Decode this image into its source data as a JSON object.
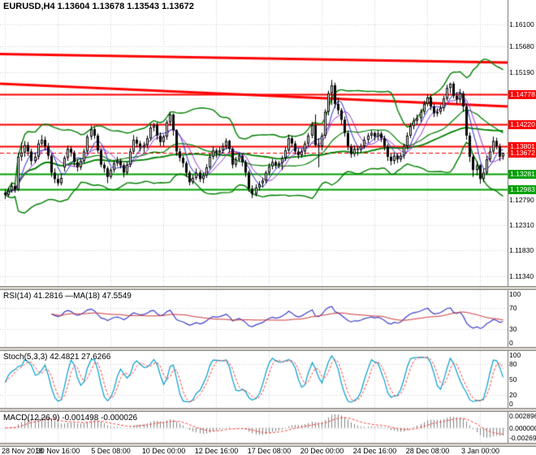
{
  "main": {
    "title": "EURUSD,H4 1.13604 1.13678 1.13543 1.13672",
    "y_axis_labels": [
      "1.16100",
      "1.15680",
      "1.15190",
      "1.12790",
      "1.12310",
      "1.11830",
      "1.11340"
    ]
  },
  "x_axis": {
    "labels": [
      {
        "text": "28 Nov 2018",
        "bar": 0
      },
      {
        "text": "30 Nov 16:00",
        "bar": 16
      },
      {
        "text": "5 Dec 08:00",
        "bar": 32
      },
      {
        "text": "10 Dec 00:00",
        "bar": 48
      },
      {
        "text": "12 Dec 16:00",
        "bar": 64
      },
      {
        "text": "17 Dec 08:00",
        "bar": 80
      },
      {
        "text": "20 Dec 00:00",
        "bar": 96
      },
      {
        "text": "24 Dec 16:00",
        "bar": 112
      },
      {
        "text": "28 Dec 08:00",
        "bar": 128
      },
      {
        "text": "3 Jan 00:00",
        "bar": 144
      }
    ]
  },
  "rsi": {
    "label": "RSI(14) 41.2816 —MA(18) 47.5549",
    "axis": [
      "100",
      "70",
      "30",
      "0"
    ],
    "levels": [
      70,
      30
    ]
  },
  "stoch": {
    "label": "Stoch(5,3,3) 42.4821 27.6266",
    "axis": [
      "100",
      "80",
      "50",
      "20",
      "0"
    ],
    "levels": [
      80,
      20
    ]
  },
  "macd": {
    "label": "MACD(12,26,9) -0.001498 -0.000026",
    "axis": [
      "0.002896",
      "0.000000",
      "-0.002693"
    ],
    "range": {
      "max": 0.002896,
      "min": -0.002693
    }
  },
  "chart_data": {
    "type": "candlestick",
    "symbol": "EURUSD",
    "timeframe": "H4",
    "title": "EURUSD,H4 1.13604 1.13678 1.13543 1.13672",
    "price_range": {
      "top": 1.165,
      "bottom": 1.1122
    },
    "gridline_prices": [
      1.161,
      1.1568,
      1.1519,
      1.1471,
      1.1423,
      1.1375,
      1.1327,
      1.1279,
      1.1231,
      1.1183,
      1.1134
    ],
    "levels": [
      {
        "name": "resistance-1",
        "value": 1.14778,
        "label": "1.14778",
        "color": "#ff0000",
        "width": 2,
        "dashed": false
      },
      {
        "name": "resistance-2",
        "value": 1.1422,
        "label": "1.14220",
        "color": "#ff0000",
        "width": 2,
        "dashed": false
      },
      {
        "name": "resistance-3",
        "value": 1.13801,
        "label": "1.13801",
        "color": "#ff0000",
        "width": 2,
        "dashed": false
      },
      {
        "name": "current-price",
        "value": 1.13672,
        "label": "1.13672",
        "color": "#ff0000",
        "width": 1,
        "dashed": true
      },
      {
        "name": "support-1",
        "value": 1.13281,
        "label": "1.13281",
        "color": "#00a000",
        "width": 2,
        "dashed": false
      },
      {
        "name": "support-2",
        "value": 1.12983,
        "label": "1.12983",
        "color": "#00a000",
        "width": 2,
        "dashed": false
      }
    ],
    "trendlines": [
      {
        "name": "upper-trendline",
        "p1": 1.1554,
        "p2": 1.1538,
        "color": "#ff0000",
        "width": 3
      },
      {
        "name": "lower-trendline",
        "p1": 1.1498,
        "p2": 1.1455,
        "color": "#ff0000",
        "width": 3
      }
    ],
    "indicators": {
      "bb": {
        "period": 20,
        "dev": 2,
        "color": "#008000"
      },
      "ma_slow": 55,
      "ma_fast": 5,
      "ma_med": 8,
      "ma_fast_color": "#2828cc",
      "ma_med_color": "#9933cc",
      "rsi": {
        "period": 14,
        "ma": 18,
        "color": "#4040cc",
        "ma_color": "#cc3333"
      },
      "stoch": {
        "k": 5,
        "slowing": 3,
        "d": 3,
        "color": "#00a0cc",
        "signal_color": "#ff4040"
      },
      "macd": {
        "fast": 12,
        "slow": 26,
        "signal": 9,
        "hist_color": "#848484",
        "signal_color": "#ff4040"
      }
    },
    "candles": [
      [
        1.1292,
        1.1298,
        1.128,
        1.1288
      ],
      [
        1.1288,
        1.1302,
        1.1284,
        1.1296
      ],
      [
        1.1296,
        1.1312,
        1.1292,
        1.1305
      ],
      [
        1.1305,
        1.131,
        1.1292,
        1.1298
      ],
      [
        1.1298,
        1.1368,
        1.1295,
        1.136
      ],
      [
        1.136,
        1.1387,
        1.1352,
        1.1368
      ],
      [
        1.1368,
        1.139,
        1.136,
        1.1382
      ],
      [
        1.1382,
        1.1388,
        1.1362,
        1.137
      ],
      [
        1.137,
        1.1375,
        1.1344,
        1.1352
      ],
      [
        1.1352,
        1.1368,
        1.1348,
        1.136
      ],
      [
        1.136,
        1.1392,
        1.1355,
        1.1385
      ],
      [
        1.1385,
        1.1401,
        1.138,
        1.1392
      ],
      [
        1.1392,
        1.1398,
        1.1372,
        1.138
      ],
      [
        1.138,
        1.1386,
        1.1355,
        1.1362
      ],
      [
        1.1362,
        1.1366,
        1.1322,
        1.133
      ],
      [
        1.133,
        1.1338,
        1.131,
        1.1318
      ],
      [
        1.1318,
        1.1326,
        1.1305,
        1.131
      ],
      [
        1.131,
        1.1328,
        1.1306,
        1.132
      ],
      [
        1.134,
        1.1362,
        1.1332,
        1.1358
      ],
      [
        1.1358,
        1.1381,
        1.1352,
        1.1375
      ],
      [
        1.1375,
        1.138,
        1.136,
        1.1368
      ],
      [
        1.1368,
        1.1372,
        1.1342,
        1.135
      ],
      [
        1.135,
        1.1356,
        1.1332,
        1.134
      ],
      [
        1.134,
        1.1356,
        1.1335,
        1.1352
      ],
      [
        1.1352,
        1.1375,
        1.1348,
        1.137
      ],
      [
        1.137,
        1.1402,
        1.1365,
        1.1398
      ],
      [
        1.1398,
        1.1419,
        1.1392,
        1.1412
      ],
      [
        1.1412,
        1.1416,
        1.1394,
        1.14
      ],
      [
        1.14,
        1.1404,
        1.1368,
        1.1372
      ],
      [
        1.1372,
        1.1376,
        1.134,
        1.1345
      ],
      [
        1.1345,
        1.135,
        1.133,
        1.1338
      ],
      [
        1.1338,
        1.1342,
        1.131,
        1.1322
      ],
      [
        1.1322,
        1.134,
        1.1318,
        1.1335
      ],
      [
        1.1335,
        1.1352,
        1.133,
        1.1348
      ],
      [
        1.1348,
        1.136,
        1.1342,
        1.1352
      ],
      [
        1.1352,
        1.1356,
        1.1338,
        1.1344
      ],
      [
        1.1344,
        1.1348,
        1.1321,
        1.133
      ],
      [
        1.133,
        1.135,
        1.1326,
        1.1345
      ],
      [
        1.1345,
        1.1376,
        1.134,
        1.137
      ],
      [
        1.137,
        1.1401,
        1.1365,
        1.1392
      ],
      [
        1.1392,
        1.1398,
        1.1378,
        1.1385
      ],
      [
        1.1385,
        1.139,
        1.137,
        1.1378
      ],
      [
        1.1378,
        1.1388,
        1.1368,
        1.1382
      ],
      [
        1.1382,
        1.14,
        1.1376,
        1.1395
      ],
      [
        1.1395,
        1.1421,
        1.139,
        1.1415
      ],
      [
        1.1415,
        1.1424,
        1.1408,
        1.142
      ],
      [
        1.142,
        1.1425,
        1.1392,
        1.14
      ],
      [
        1.14,
        1.1406,
        1.138,
        1.1388
      ],
      [
        1.1388,
        1.1402,
        1.138,
        1.1398
      ],
      [
        1.1398,
        1.143,
        1.1392,
        1.1425
      ],
      [
        1.1425,
        1.1443,
        1.1418,
        1.144
      ],
      [
        1.144,
        1.1442,
        1.14,
        1.141
      ],
      [
        1.141,
        1.1412,
        1.1362,
        1.137
      ],
      [
        1.137,
        1.1376,
        1.1351,
        1.1358
      ],
      [
        1.1358,
        1.1362,
        1.134,
        1.1348
      ],
      [
        1.1348,
        1.1352,
        1.1322,
        1.133
      ],
      [
        1.133,
        1.1334,
        1.1306,
        1.1312
      ],
      [
        1.1312,
        1.1326,
        1.1308,
        1.132
      ],
      [
        1.132,
        1.1338,
        1.1316,
        1.133
      ],
      [
        1.133,
        1.1334,
        1.1312,
        1.1318
      ],
      [
        1.1318,
        1.133,
        1.131,
        1.1325
      ],
      [
        1.1325,
        1.1346,
        1.132,
        1.134
      ],
      [
        1.134,
        1.1366,
        1.1336,
        1.136
      ],
      [
        1.136,
        1.138,
        1.1355,
        1.1372
      ],
      [
        1.1372,
        1.1376,
        1.1358,
        1.1368
      ],
      [
        1.1368,
        1.1378,
        1.1362,
        1.1372
      ],
      [
        1.1372,
        1.1386,
        1.1366,
        1.138
      ],
      [
        1.138,
        1.1395,
        1.1374,
        1.139
      ],
      [
        1.139,
        1.1392,
        1.1368,
        1.1375
      ],
      [
        1.1375,
        1.1378,
        1.1338,
        1.1345
      ],
      [
        1.1345,
        1.136,
        1.134,
        1.1355
      ],
      [
        1.1355,
        1.1368,
        1.135,
        1.1362
      ],
      [
        1.1362,
        1.1366,
        1.1342,
        1.135
      ],
      [
        1.135,
        1.1354,
        1.1322,
        1.133
      ],
      [
        1.133,
        1.1334,
        1.1294,
        1.13
      ],
      [
        1.13,
        1.1306,
        1.1282,
        1.129
      ],
      [
        1.129,
        1.1308,
        1.1285,
        1.1302
      ],
      [
        1.1302,
        1.1314,
        1.1296,
        1.1308
      ],
      [
        1.131,
        1.132,
        1.1302,
        1.1315
      ],
      [
        1.1315,
        1.1334,
        1.131,
        1.133
      ],
      [
        1.133,
        1.1348,
        1.1325,
        1.1342
      ],
      [
        1.1342,
        1.1356,
        1.1336,
        1.135
      ],
      [
        1.135,
        1.1354,
        1.1338,
        1.1344
      ],
      [
        1.1344,
        1.1352,
        1.1338,
        1.1348
      ],
      [
        1.1348,
        1.1362,
        1.1335,
        1.1358
      ],
      [
        1.1358,
        1.1378,
        1.1352,
        1.1372
      ],
      [
        1.1372,
        1.1402,
        1.1368,
        1.1395
      ],
      [
        1.1395,
        1.14,
        1.1378,
        1.1385
      ],
      [
        1.1385,
        1.139,
        1.1365,
        1.137
      ],
      [
        1.137,
        1.1376,
        1.1356,
        1.1363
      ],
      [
        1.1363,
        1.1375,
        1.1358,
        1.137
      ],
      [
        1.137,
        1.139,
        1.1364,
        1.1385
      ],
      [
        1.1385,
        1.1405,
        1.138,
        1.14
      ],
      [
        1.14,
        1.1426,
        1.1395,
        1.142
      ],
      [
        1.142,
        1.144,
        1.1378,
        1.1382
      ],
      [
        1.1382,
        1.1395,
        1.134,
        1.138
      ],
      [
        1.138,
        1.1405,
        1.1372,
        1.14
      ],
      [
        1.14,
        1.145,
        1.1395,
        1.1445
      ],
      [
        1.1445,
        1.1485,
        1.1438,
        1.148
      ],
      [
        1.148,
        1.1505,
        1.1458,
        1.1495
      ],
      [
        1.1495,
        1.15,
        1.1452,
        1.146
      ],
      [
        1.146,
        1.1472,
        1.144,
        1.1448
      ],
      [
        1.1448,
        1.1452,
        1.142,
        1.143
      ],
      [
        1.143,
        1.1436,
        1.1398,
        1.1405
      ],
      [
        1.1405,
        1.141,
        1.1372,
        1.138
      ],
      [
        1.138,
        1.1384,
        1.1358,
        1.1365
      ],
      [
        1.1365,
        1.1382,
        1.136,
        1.1375
      ],
      [
        1.1375,
        1.138,
        1.1362,
        1.1373
      ],
      [
        1.1373,
        1.1385,
        1.1368,
        1.138
      ],
      [
        1.138,
        1.1398,
        1.1375,
        1.1392
      ],
      [
        1.1392,
        1.1405,
        1.1386,
        1.14
      ],
      [
        1.14,
        1.141,
        1.1394,
        1.1405
      ],
      [
        1.1405,
        1.1408,
        1.139,
        1.1398
      ],
      [
        1.1398,
        1.141,
        1.1392,
        1.1404
      ],
      [
        1.1404,
        1.1408,
        1.1388,
        1.1395
      ],
      [
        1.1395,
        1.14,
        1.1372,
        1.138
      ],
      [
        1.138,
        1.1384,
        1.1352,
        1.136
      ],
      [
        1.136,
        1.1366,
        1.1344,
        1.1352
      ],
      [
        1.1352,
        1.1368,
        1.1346,
        1.1362
      ],
      [
        1.1362,
        1.1366,
        1.1348,
        1.1355
      ],
      [
        1.1355,
        1.1368,
        1.135,
        1.1362
      ],
      [
        1.1362,
        1.1385,
        1.1356,
        1.138
      ],
      [
        1.138,
        1.1406,
        1.1375,
        1.14
      ],
      [
        1.14,
        1.1424,
        1.1395,
        1.1418
      ],
      [
        1.1418,
        1.1434,
        1.1412,
        1.1428
      ],
      [
        1.1428,
        1.144,
        1.142,
        1.1433
      ],
      [
        1.1433,
        1.145,
        1.1426,
        1.1445
      ],
      [
        1.1445,
        1.1466,
        1.144,
        1.146
      ],
      [
        1.146,
        1.1478,
        1.1455,
        1.1472
      ],
      [
        1.1472,
        1.1476,
        1.1448,
        1.1455
      ],
      [
        1.1455,
        1.146,
        1.1435,
        1.1442
      ],
      [
        1.1442,
        1.1452,
        1.1436,
        1.1445
      ],
      [
        1.1445,
        1.1458,
        1.144,
        1.1452
      ],
      [
        1.1452,
        1.1475,
        1.1446,
        1.147
      ],
      [
        1.147,
        1.1496,
        1.1465,
        1.149
      ],
      [
        1.149,
        1.15,
        1.148,
        1.1498
      ],
      [
        1.1498,
        1.1502,
        1.147,
        1.1475
      ],
      [
        1.1475,
        1.1482,
        1.146,
        1.1468
      ],
      [
        1.1468,
        1.1488,
        1.1462,
        1.148
      ],
      [
        1.148,
        1.1484,
        1.1445,
        1.1455
      ],
      [
        1.1455,
        1.146,
        1.1392,
        1.14
      ],
      [
        1.14,
        1.1406,
        1.135,
        1.136
      ],
      [
        1.136,
        1.1365,
        1.1322,
        1.1335
      ],
      [
        1.1335,
        1.1352,
        1.1325,
        1.1344
      ],
      [
        1.1344,
        1.1346,
        1.1309,
        1.1318
      ],
      [
        1.1318,
        1.1338,
        1.1312,
        1.133
      ],
      [
        1.133,
        1.1362,
        1.1326,
        1.1355
      ],
      [
        1.1355,
        1.1378,
        1.135,
        1.137
      ],
      [
        1.137,
        1.1398,
        1.1365,
        1.139
      ],
      [
        1.139,
        1.1396,
        1.1374,
        1.138
      ],
      [
        1.138,
        1.1385,
        1.1352,
        1.136
      ],
      [
        1.13604,
        1.13678,
        1.13543,
        1.13672
      ]
    ]
  }
}
